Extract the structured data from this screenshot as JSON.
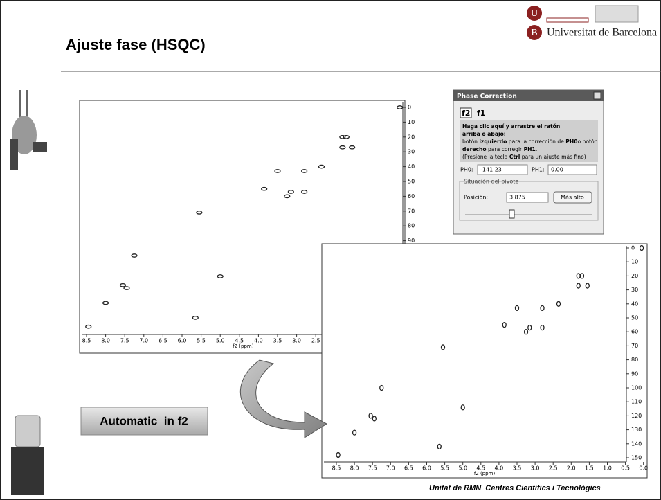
{
  "header": {
    "title": "Ajuste fase (HSQC)",
    "logo_text": "Universitat de Barcelona"
  },
  "spectra": [
    {
      "xticks": [
        "8.5",
        "8.0",
        "7.5",
        "7.0",
        "6.5",
        "6.0",
        "5.5",
        "5.0",
        "4.5",
        "4.0",
        "3.5",
        "3.0",
        "2.5"
      ],
      "yticks": [
        "0",
        "10",
        "20",
        "30",
        "40",
        "50",
        "60",
        "70",
        "80",
        "90"
      ],
      "xlabel": "f2 (ppm)",
      "peaks": {
        "x": [
          8.45,
          8.0,
          7.55,
          7.45,
          7.25,
          5.0,
          5.65,
          5.55,
          3.85,
          3.5,
          3.25,
          3.15,
          2.8,
          2.8,
          2.35,
          1.8,
          1.8,
          1.55,
          1.7,
          0.3
        ],
        "y": [
          148,
          132,
          120,
          122,
          100,
          114,
          142,
          71,
          55,
          43,
          60,
          57,
          57,
          43,
          40,
          20,
          27,
          27,
          20,
          0
        ]
      }
    },
    {
      "xticks": [
        "8.5",
        "8.0",
        "7.5",
        "7.0",
        "6.5",
        "6.0",
        "5.5",
        "5.0",
        "4.5",
        "4.0",
        "3.5",
        "3.0",
        "2.5",
        "2.0",
        "1.5",
        "1.0",
        "0.5",
        "0.0"
      ],
      "yticks": [
        "0",
        "10",
        "20",
        "30",
        "40",
        "50",
        "60",
        "70",
        "80",
        "90",
        "100",
        "110",
        "120",
        "130",
        "140",
        "150"
      ],
      "xlabel": "f2 (ppm)",
      "peaks": {
        "x": [
          8.45,
          8.0,
          7.55,
          7.45,
          7.25,
          5.0,
          5.65,
          5.55,
          3.85,
          3.5,
          3.25,
          3.15,
          2.8,
          2.8,
          2.35,
          1.8,
          1.8,
          1.55,
          1.7,
          0.05
        ],
        "y": [
          148,
          132,
          120,
          122,
          100,
          114,
          142,
          71,
          55,
          43,
          60,
          57,
          57,
          43,
          40,
          20,
          27,
          27,
          20,
          0
        ]
      }
    }
  ],
  "dialog": {
    "title": "Phase Correction",
    "tabs": [
      "f2",
      "f1"
    ],
    "lines": [
      [
        {
          "text": "Haga clic aquí y arrastre el ratón",
          "bold": true
        }
      ],
      [
        {
          "text": "arriba o abajo:",
          "bold": true
        }
      ],
      [
        {
          "text": "botón ",
          "bold": false
        },
        {
          "text": "izquierdo",
          "bold": true
        },
        {
          "text": " para la corrección de ",
          "bold": false
        },
        {
          "text": "PH0",
          "bold": true
        },
        {
          "text": "o botón",
          "bold": false
        }
      ],
      [
        {
          "text": "derecho",
          "bold": true
        },
        {
          "text": " para corregir ",
          "bold": false
        },
        {
          "text": "PH1",
          "bold": true
        },
        {
          "text": ".",
          "bold": false
        }
      ],
      [
        {
          "text": "(Presione la tecla ",
          "bold": false
        },
        {
          "text": "Ctrl",
          "bold": true
        },
        {
          "text": " para un ajuste más fino)",
          "bold": false
        }
      ]
    ],
    "ph0_label": "PH0:",
    "ph0": "-141.23",
    "ph1_label": "PH1:",
    "ph1": "0.00",
    "pivot_title": "Situación del pivote",
    "position_label": "Posición:",
    "position": "3.875",
    "button": "Más alto"
  },
  "button": "Automatic  in f2",
  "footer": "Unitat de RMN  Centres Científics i Tecnològics"
}
